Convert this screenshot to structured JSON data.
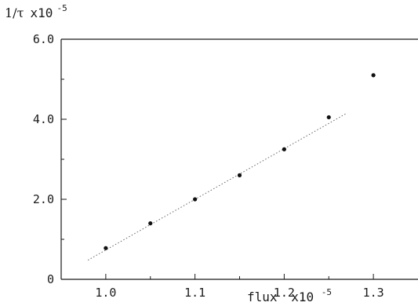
{
  "chart_data": {
    "type": "scatter",
    "title": "",
    "ylabel": "1/τ",
    "ylabel_scale": "x10",
    "ylabel_exp": "-5",
    "xlabel": "flux",
    "xlabel_scale": "x10",
    "xlabel_exp": "-5",
    "xlim": [
      0.95,
      1.35
    ],
    "ylim": [
      0,
      6.0
    ],
    "xticks": [
      1.0,
      1.05,
      1.1,
      1.15,
      1.2,
      1.25,
      1.3
    ],
    "xtick_labels": [
      "1.0",
      "",
      "1.1",
      "",
      "1.2",
      "",
      "1.3"
    ],
    "yticks": [
      0,
      1.0,
      2.0,
      3.0,
      4.0,
      5.0,
      6.0
    ],
    "ytick_labels": [
      "0",
      "",
      "2.0",
      "",
      "4.0",
      "",
      "6.0"
    ],
    "grid": false,
    "series": [
      {
        "x": [
          1.0,
          1.05,
          1.1,
          1.15,
          1.2,
          1.25,
          1.3
        ],
        "y": [
          0.78,
          1.4,
          2.0,
          2.6,
          3.25,
          4.05,
          5.1
        ]
      }
    ],
    "fit_line": {
      "x": [
        0.98,
        1.27
      ],
      "y": [
        0.48,
        4.15
      ],
      "style": "dotted"
    },
    "colors": {
      "points": "#111111",
      "axes": "#1a1a1a",
      "fit": "#666666"
    }
  }
}
